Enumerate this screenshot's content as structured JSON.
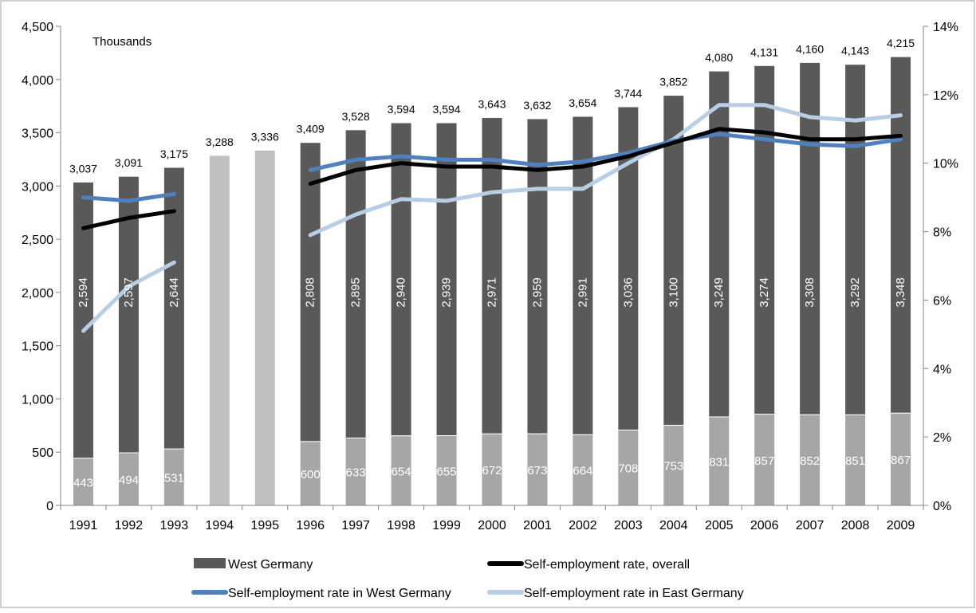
{
  "chart_data": {
    "type": "bar",
    "annotation": "Thousands",
    "categories": [
      "1991",
      "1992",
      "1993",
      "1994",
      "1995",
      "1996",
      "1997",
      "1998",
      "1999",
      "2000",
      "2001",
      "2002",
      "2003",
      "2004",
      "2005",
      "2006",
      "2007",
      "2008",
      "2009"
    ],
    "totals": [
      3037,
      3091,
      3175,
      3288,
      3336,
      3409,
      3528,
      3594,
      3594,
      3643,
      3632,
      3654,
      3744,
      3852,
      4080,
      4131,
      4160,
      4143,
      4215
    ],
    "totals_labels": [
      "3,037",
      "3,091",
      "3,175",
      "3,288",
      "3,336",
      "3,409",
      "3,528",
      "3,594",
      "3,594",
      "3,643",
      "3,632",
      "3,654",
      "3,744",
      "3,852",
      "4,080",
      "4,131",
      "4,160",
      "4,143",
      "4,215"
    ],
    "series": [
      {
        "name": "West Germany",
        "kind": "bar",
        "color": "#595959",
        "values": [
          2594,
          2597,
          2644,
          null,
          null,
          2808,
          2895,
          2940,
          2939,
          2971,
          2959,
          2991,
          3036,
          3100,
          3249,
          3274,
          3308,
          3292,
          3348
        ],
        "labels": [
          "2,594",
          "2,597",
          "2,644",
          "",
          "",
          "2,808",
          "2,895",
          "2,940",
          "2,939",
          "2,971",
          "2,959",
          "2,991",
          "3,036",
          "3,100",
          "3,249",
          "3,274",
          "3,308",
          "3,292",
          "3,348"
        ]
      },
      {
        "name": "",
        "kind": "bar",
        "color": "#a6a6a6",
        "values": [
          443,
          494,
          531,
          null,
          null,
          600,
          633,
          654,
          655,
          672,
          673,
          664,
          708,
          753,
          831,
          857,
          852,
          851,
          867
        ],
        "labels": [
          "443",
          "494",
          "531",
          "",
          "",
          "600",
          "633",
          "654",
          "655",
          "672",
          "673",
          "664",
          "708",
          "753",
          "831",
          "857",
          "852",
          "851",
          "867"
        ]
      },
      {
        "name": "Self-employment rate, overall",
        "kind": "line",
        "axis": "right",
        "color": "#000000",
        "values": [
          8.1,
          8.4,
          8.6,
          null,
          null,
          9.4,
          9.8,
          10.0,
          9.9,
          9.9,
          9.8,
          9.9,
          10.2,
          10.6,
          11.0,
          10.9,
          10.7,
          10.7,
          10.8
        ]
      },
      {
        "name": "Self-employment rate in West Germany",
        "kind": "line",
        "axis": "right",
        "color": "#4f81bd",
        "values": [
          9.0,
          8.9,
          9.1,
          null,
          null,
          9.8,
          10.1,
          10.2,
          10.1,
          10.1,
          9.95,
          10.05,
          10.3,
          10.65,
          10.85,
          10.7,
          10.55,
          10.5,
          10.7
        ]
      },
      {
        "name": "Self-employment rate in East Germany",
        "kind": "line",
        "axis": "right",
        "color": "#b9cde5",
        "values": [
          5.1,
          6.4,
          7.1,
          null,
          null,
          7.9,
          8.5,
          8.95,
          8.9,
          9.15,
          9.25,
          9.25,
          10.0,
          10.7,
          11.7,
          11.7,
          11.35,
          11.25,
          11.4
        ]
      }
    ],
    "gap_bar_color": "#c0c0c0",
    "y_left": {
      "min": 0,
      "max": 4500,
      "ticks": [
        0,
        500,
        1000,
        1500,
        2000,
        2500,
        3000,
        3500,
        4000,
        4500
      ],
      "tick_labels": [
        "0",
        "500",
        "1,000",
        "1,500",
        "2,000",
        "2,500",
        "3,000",
        "3,500",
        "4,000",
        "4,500"
      ]
    },
    "y_right": {
      "min": 0,
      "max": 14,
      "ticks": [
        0,
        2,
        4,
        6,
        8,
        10,
        12,
        14
      ],
      "tick_labels": [
        "0%",
        "2%",
        "4%",
        "6%",
        "8%",
        "10%",
        "12%",
        "14%"
      ]
    },
    "grid": false,
    "legend_placement": "bottom"
  }
}
